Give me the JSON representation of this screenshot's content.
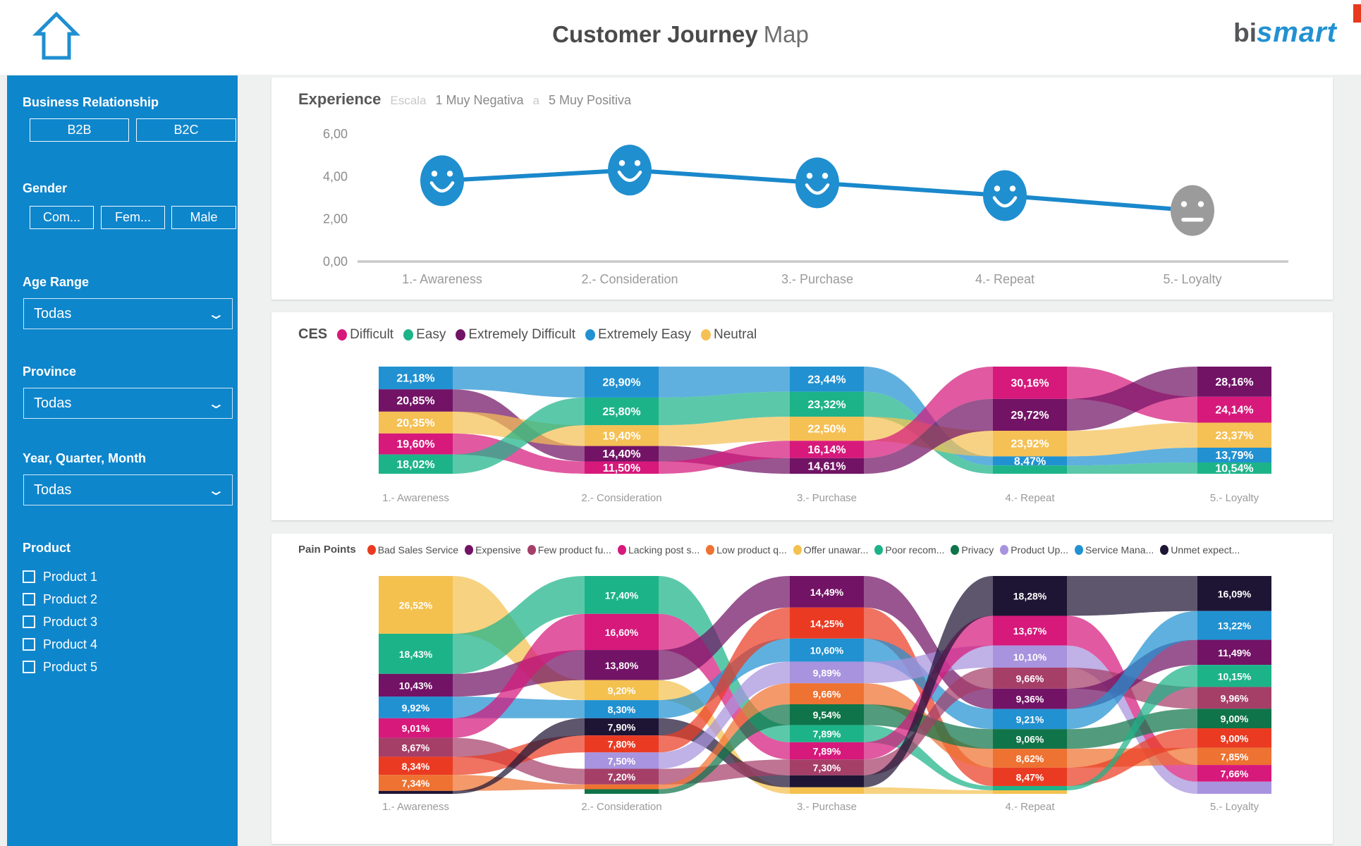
{
  "header": {
    "title_bold": "Customer Journey",
    "title_light": "Map",
    "logo_bi": "bi",
    "logo_smart": "smart"
  },
  "sidebar": {
    "business_relationship": {
      "label": "Business Relationship",
      "buttons": [
        "B2B",
        "B2C"
      ]
    },
    "gender": {
      "label": "Gender",
      "buttons": [
        "Com...",
        "Fem...",
        "Male"
      ]
    },
    "age_range": {
      "label": "Age Range",
      "value": "Todas"
    },
    "province": {
      "label": "Province",
      "value": "Todas"
    },
    "year_quarter_month": {
      "label": "Year, Quarter, Month",
      "value": "Todas"
    },
    "product": {
      "label": "Product",
      "items": [
        "Product 1",
        "Product 2",
        "Product 3",
        "Product 4",
        "Product 5"
      ]
    }
  },
  "chart_data": [
    {
      "id": "experience",
      "type": "line",
      "title": "Experience",
      "subtitle": {
        "escala": "Escala",
        "range_start": "1 Muy Negativa",
        "connector": "a",
        "range_end": "5 Muy Positiva"
      },
      "categories": [
        "1.- Awareness",
        "2.- Consideration",
        "3.- Purchase",
        "4.- Repeat",
        "5.- Loyalty"
      ],
      "values": [
        3.8,
        4.3,
        3.7,
        3.1,
        2.4
      ],
      "point_styles": [
        "happy",
        "happy",
        "happy",
        "happy",
        "neutral"
      ],
      "ylim": [
        0,
        6
      ],
      "yticks": [
        {
          "v": 0,
          "label": "0,00"
        },
        {
          "v": 2,
          "label": "2,00"
        },
        {
          "v": 4,
          "label": "4,00"
        },
        {
          "v": 6,
          "label": "6,00"
        }
      ],
      "line_color": "#1a88cb",
      "happy_color": "#1f8fd0",
      "neutral_color": "#9b9b9b"
    },
    {
      "id": "ces",
      "type": "ribbon",
      "title": "CES",
      "legend": [
        {
          "cat": "difficult",
          "label": "Difficult"
        },
        {
          "cat": "easy",
          "label": "Easy"
        },
        {
          "cat": "ext_difficult",
          "label": "Extremely Difficult"
        },
        {
          "cat": "ext_easy",
          "label": "Extremely Easy"
        },
        {
          "cat": "neutral",
          "label": "Neutral"
        }
      ],
      "colors": {
        "difficult": "#d6197b",
        "easy": "#1db389",
        "ext_difficult": "#721365",
        "ext_easy": "#2191d1",
        "neutral": "#f5c054"
      },
      "stages": [
        "1.- Awareness",
        "2.- Consideration",
        "3.- Purchase",
        "4.- Repeat",
        "5.- Loyalty"
      ],
      "nodes": [
        [
          {
            "cat": "ext_easy",
            "value": 21.18,
            "label": "21,18%"
          },
          {
            "cat": "ext_difficult",
            "value": 20.85,
            "label": "20,85%"
          },
          {
            "cat": "neutral",
            "value": 20.35,
            "label": "20,35%"
          },
          {
            "cat": "difficult",
            "value": 19.6,
            "label": "19,60%"
          },
          {
            "cat": "easy",
            "value": 18.02,
            "label": "18,02%"
          }
        ],
        [
          {
            "cat": "ext_easy",
            "value": 28.9,
            "label": "28,90%"
          },
          {
            "cat": "easy",
            "value": 25.8,
            "label": "25,80%"
          },
          {
            "cat": "neutral",
            "value": 19.4,
            "label": "19,40%"
          },
          {
            "cat": "ext_difficult",
            "value": 14.4,
            "label": "14,40%"
          },
          {
            "cat": "difficult",
            "value": 11.5,
            "label": "11,50%"
          }
        ],
        [
          {
            "cat": "ext_easy",
            "value": 23.44,
            "label": "23,44%"
          },
          {
            "cat": "easy",
            "value": 23.32,
            "label": "23,32%"
          },
          {
            "cat": "neutral",
            "value": 22.5,
            "label": "22,50%"
          },
          {
            "cat": "difficult",
            "value": 16.14,
            "label": "16,14%"
          },
          {
            "cat": "ext_difficult",
            "value": 14.61,
            "label": "14,61%"
          }
        ],
        [
          {
            "cat": "difficult",
            "value": 30.16,
            "label": "30,16%"
          },
          {
            "cat": "ext_difficult",
            "value": 29.72,
            "label": "29,72%"
          },
          {
            "cat": "neutral",
            "value": 23.92,
            "label": "23,92%"
          },
          {
            "cat": "ext_easy",
            "value": 8.47,
            "label": "8,47%"
          },
          {
            "cat": "easy",
            "value": 7.73,
            "label": ""
          }
        ],
        [
          {
            "cat": "ext_difficult",
            "value": 28.16,
            "label": "28,16%"
          },
          {
            "cat": "difficult",
            "value": 24.14,
            "label": "24,14%"
          },
          {
            "cat": "neutral",
            "value": 23.37,
            "label": "23,37%"
          },
          {
            "cat": "ext_easy",
            "value": 13.79,
            "label": "13,79%"
          },
          {
            "cat": "easy",
            "value": 10.54,
            "label": "10,54%"
          }
        ]
      ]
    },
    {
      "id": "pain",
      "type": "ribbon",
      "title": "Pain Points",
      "legend": [
        {
          "cat": "bad_sales",
          "label": "Bad Sales Service"
        },
        {
          "cat": "expensive",
          "label": "Expensive"
        },
        {
          "cat": "few_product",
          "label": "Few product fu..."
        },
        {
          "cat": "lacking_post",
          "label": "Lacking post s..."
        },
        {
          "cat": "low_product",
          "label": "Low product q..."
        },
        {
          "cat": "offer_unaware",
          "label": "Offer unawar..."
        },
        {
          "cat": "poor_recom",
          "label": "Poor recom..."
        },
        {
          "cat": "privacy",
          "label": "Privacy"
        },
        {
          "cat": "product_up",
          "label": "Product Up..."
        },
        {
          "cat": "service_mana",
          "label": "Service Mana..."
        },
        {
          "cat": "unmet_expect",
          "label": "Unmet expect..."
        }
      ],
      "colors": {
        "bad_sales": "#ea3b22",
        "expensive": "#721365",
        "few_product": "#a53f68",
        "lacking_post": "#d6197b",
        "low_product": "#ee7231",
        "offer_unaware": "#f4c14f",
        "poor_recom": "#1db389",
        "privacy": "#0f7449",
        "product_up": "#a893de",
        "service_mana": "#2191d1",
        "unmet_expect": "#1e1535"
      },
      "stages": [
        "1.- Awareness",
        "2.- Consideration",
        "3.- Purchase",
        "4.- Repeat",
        "5.- Loyalty"
      ],
      "nodes": [
        [
          {
            "cat": "offer_unaware",
            "value": 26.52,
            "label": "26,52%"
          },
          {
            "cat": "poor_recom",
            "value": 18.43,
            "label": "18,43%"
          },
          {
            "cat": "expensive",
            "value": 10.43,
            "label": "10,43%"
          },
          {
            "cat": "service_mana",
            "value": 9.92,
            "label": "9,92%"
          },
          {
            "cat": "lacking_post",
            "value": 9.01,
            "label": "9,01%"
          },
          {
            "cat": "few_product",
            "value": 8.67,
            "label": "8,67%"
          },
          {
            "cat": "bad_sales",
            "value": 8.34,
            "label": "8,34%"
          },
          {
            "cat": "low_product",
            "value": 7.34,
            "label": "7,34%"
          },
          {
            "cat": "unmet_expect",
            "value": 1.34,
            "label": ""
          }
        ],
        [
          {
            "cat": "poor_recom",
            "value": 17.4,
            "label": "17,40%"
          },
          {
            "cat": "lacking_post",
            "value": 16.6,
            "label": "16,60%"
          },
          {
            "cat": "expensive",
            "value": 13.8,
            "label": "13,80%"
          },
          {
            "cat": "offer_unaware",
            "value": 9.2,
            "label": "9,20%"
          },
          {
            "cat": "service_mana",
            "value": 8.3,
            "label": "8,30%"
          },
          {
            "cat": "unmet_expect",
            "value": 7.9,
            "label": "7,90%"
          },
          {
            "cat": "bad_sales",
            "value": 7.8,
            "label": "7,80%"
          },
          {
            "cat": "product_up",
            "value": 7.5,
            "label": "7,50%"
          },
          {
            "cat": "few_product",
            "value": 7.2,
            "label": "7,20%"
          },
          {
            "cat": "low_product",
            "value": 2.2,
            "label": ""
          },
          {
            "cat": "privacy",
            "value": 2.1,
            "label": ""
          }
        ],
        [
          {
            "cat": "expensive",
            "value": 14.49,
            "label": "14,49%"
          },
          {
            "cat": "bad_sales",
            "value": 14.25,
            "label": "14,25%"
          },
          {
            "cat": "service_mana",
            "value": 10.6,
            "label": "10,60%"
          },
          {
            "cat": "product_up",
            "value": 9.89,
            "label": "9,89%"
          },
          {
            "cat": "low_product",
            "value": 9.66,
            "label": "9,66%"
          },
          {
            "cat": "privacy",
            "value": 9.54,
            "label": "9,54%"
          },
          {
            "cat": "poor_recom",
            "value": 7.89,
            "label": "7,89%"
          },
          {
            "cat": "lacking_post",
            "value": 7.89,
            "label": "7,89%"
          },
          {
            "cat": "few_product",
            "value": 7.3,
            "label": "7,30%"
          },
          {
            "cat": "unmet_expect",
            "value": 5.5,
            "label": ""
          },
          {
            "cat": "offer_unaware",
            "value": 2.99,
            "label": ""
          }
        ],
        [
          {
            "cat": "unmet_expect",
            "value": 18.28,
            "label": "18,28%"
          },
          {
            "cat": "lacking_post",
            "value": 13.67,
            "label": "13,67%"
          },
          {
            "cat": "product_up",
            "value": 10.1,
            "label": "10,10%"
          },
          {
            "cat": "few_product",
            "value": 9.66,
            "label": "9,66%"
          },
          {
            "cat": "expensive",
            "value": 9.36,
            "label": "9,36%"
          },
          {
            "cat": "service_mana",
            "value": 9.21,
            "label": "9,21%"
          },
          {
            "cat": "privacy",
            "value": 9.06,
            "label": "9,06%"
          },
          {
            "cat": "low_product",
            "value": 8.62,
            "label": "8,62%"
          },
          {
            "cat": "bad_sales",
            "value": 8.47,
            "label": "8,47%"
          },
          {
            "cat": "poor_recom",
            "value": 1.95,
            "label": ""
          },
          {
            "cat": "offer_unaware",
            "value": 1.62,
            "label": ""
          }
        ],
        [
          {
            "cat": "unmet_expect",
            "value": 16.09,
            "label": "16,09%"
          },
          {
            "cat": "service_mana",
            "value": 13.22,
            "label": "13,22%"
          },
          {
            "cat": "expensive",
            "value": 11.49,
            "label": "11,49%"
          },
          {
            "cat": "poor_recom",
            "value": 10.15,
            "label": "10,15%"
          },
          {
            "cat": "few_product",
            "value": 9.96,
            "label": "9,96%"
          },
          {
            "cat": "privacy",
            "value": 9.0,
            "label": "9,00%"
          },
          {
            "cat": "bad_sales",
            "value": 9.0,
            "label": "9,00%"
          },
          {
            "cat": "low_product",
            "value": 7.85,
            "label": "7,85%"
          },
          {
            "cat": "lacking_post",
            "value": 7.66,
            "label": "7,66%"
          },
          {
            "cat": "product_up",
            "value": 5.58,
            "label": ""
          }
        ]
      ]
    }
  ]
}
